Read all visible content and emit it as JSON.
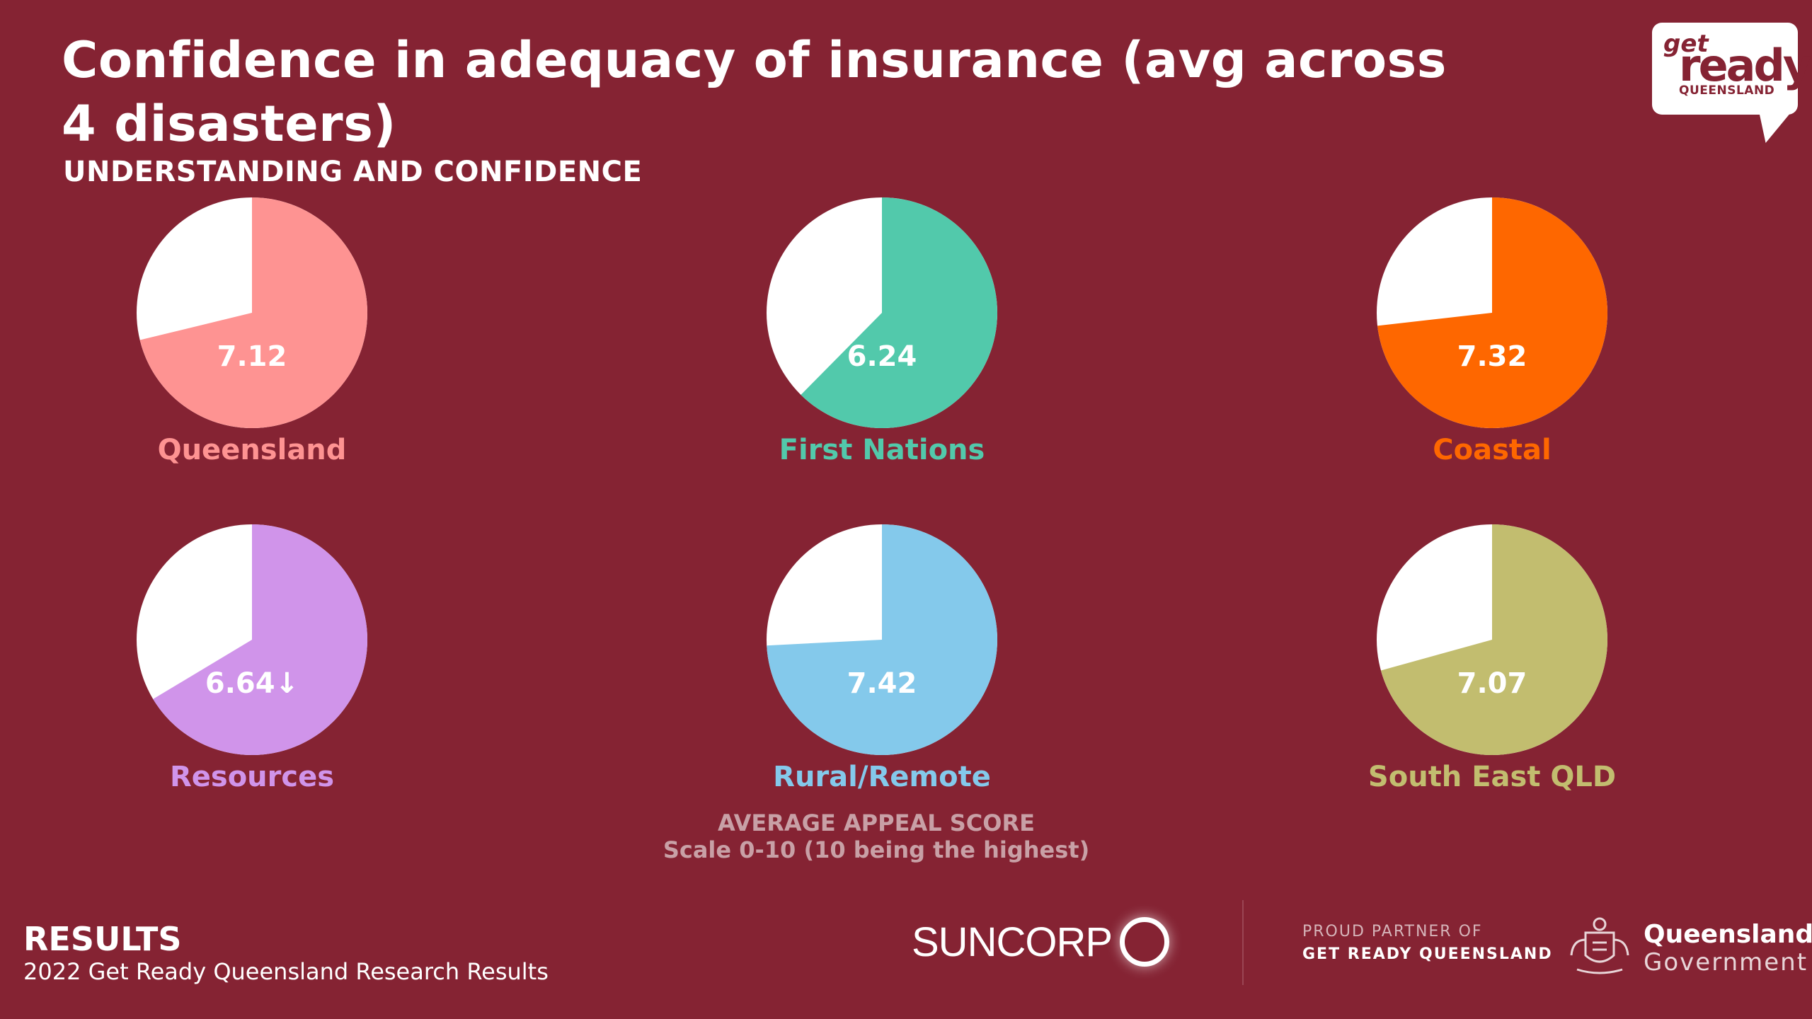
{
  "title": "Confidence in adequacy of insurance (avg across 4 disasters)",
  "subtitle": "UNDERSTANDING AND CONFIDENCE",
  "logo": {
    "line1": "get",
    "line2": "ready",
    "line3": "QUEENSLAND"
  },
  "chart_data": {
    "type": "pie",
    "scale_max": 10,
    "charts": [
      {
        "name": "Queensland",
        "value": 7.12,
        "label": "7.12",
        "color": "#fe9392"
      },
      {
        "name": "First Nations",
        "value": 6.24,
        "label": "6.24",
        "color": "#52c9ab"
      },
      {
        "name": "Coastal",
        "value": 7.32,
        "label": "7.32",
        "color": "#fe6700"
      },
      {
        "name": "Resources",
        "value": 6.64,
        "label": "6.64↓",
        "color": "#d094ea"
      },
      {
        "name": "Rural/Remote",
        "value": 7.42,
        "label": "7.42",
        "color": "#84c9eb"
      },
      {
        "name": "South East QLD",
        "value": 7.07,
        "label": "7.07",
        "color": "#c2bd6f"
      }
    ],
    "remainder_color": "#ffffff"
  },
  "source": {
    "line1": "AVERAGE APPEAL SCORE",
    "line2": "Scale 0-10 (10 being the highest)"
  },
  "footer": {
    "results": "RESULTS",
    "results_sub": "2022 Get Ready Queensland Research Results",
    "suncorp": "SUNCORP",
    "partner_line1": "PROUD PARTNER OF",
    "partner_line2": "GET READY QUEENSLAND",
    "qgov_line1": "Queensland",
    "qgov_line2": "Government"
  }
}
